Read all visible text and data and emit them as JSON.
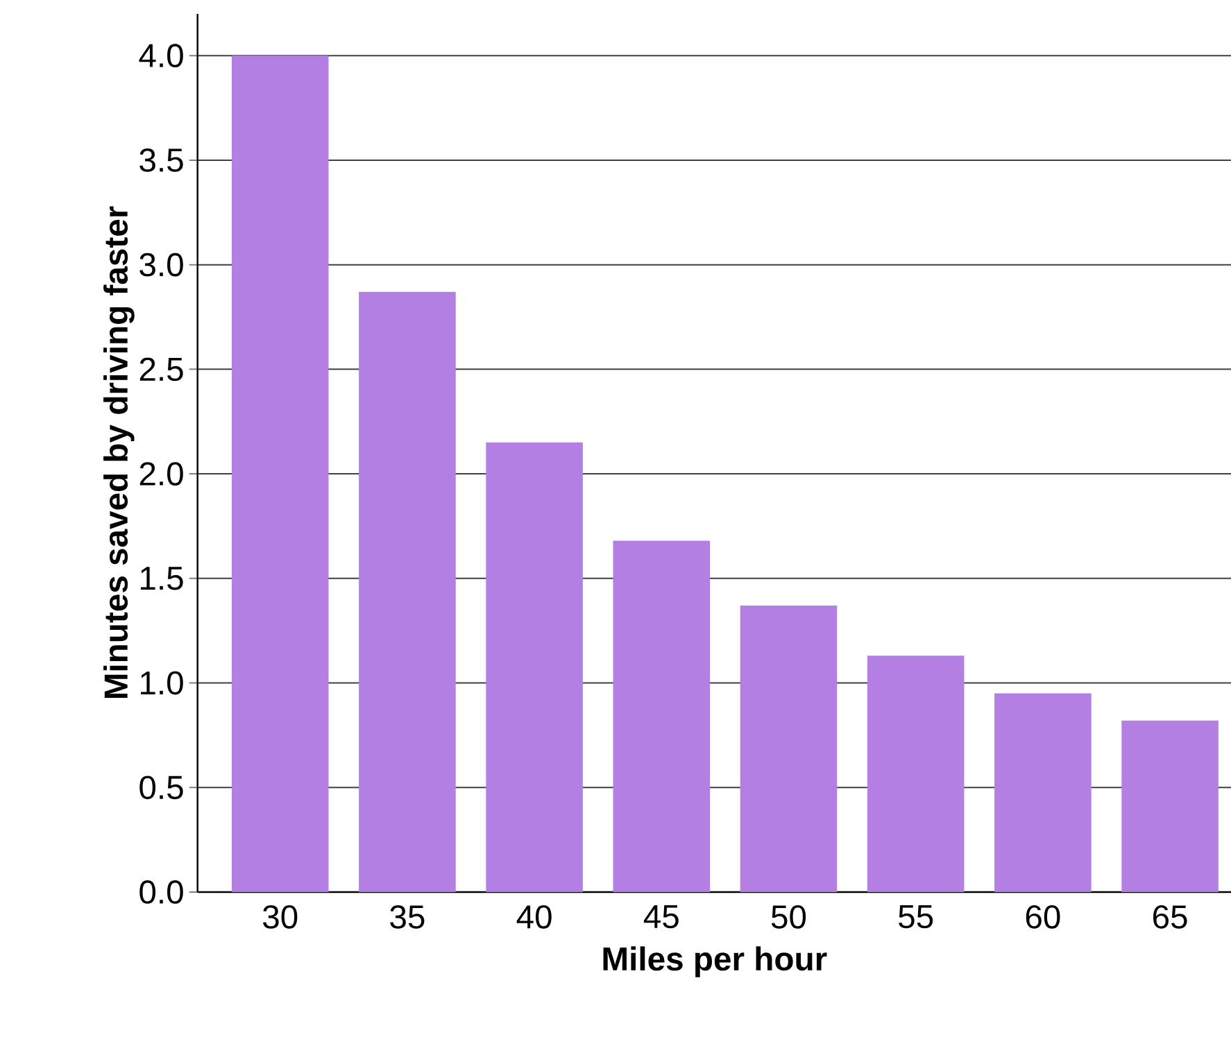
{
  "chart_data": {
    "type": "bar",
    "xlabel": "Miles per hour",
    "ylabel": "Minutes saved by driving faster",
    "categories": [
      "30",
      "35",
      "40",
      "45",
      "50",
      "55",
      "60",
      "65"
    ],
    "values": [
      4.0,
      2.87,
      2.15,
      1.68,
      1.37,
      1.13,
      0.95,
      0.82
    ],
    "color": "#b47fe2",
    "ylim": [
      0,
      4.2
    ],
    "yticks": [
      {
        "value": 0,
        "label": "0.0"
      },
      {
        "value": 0.5,
        "label": "0.5"
      },
      {
        "value": 1,
        "label": "1.0"
      },
      {
        "value": 1.5,
        "label": "1.5"
      },
      {
        "value": 2,
        "label": "2.0"
      },
      {
        "value": 2.5,
        "label": "2.5"
      },
      {
        "value": 3,
        "label": "3.0"
      },
      {
        "value": 3.5,
        "label": "3.5"
      },
      {
        "value": 4,
        "label": "4.0"
      }
    ],
    "grid": "y"
  }
}
